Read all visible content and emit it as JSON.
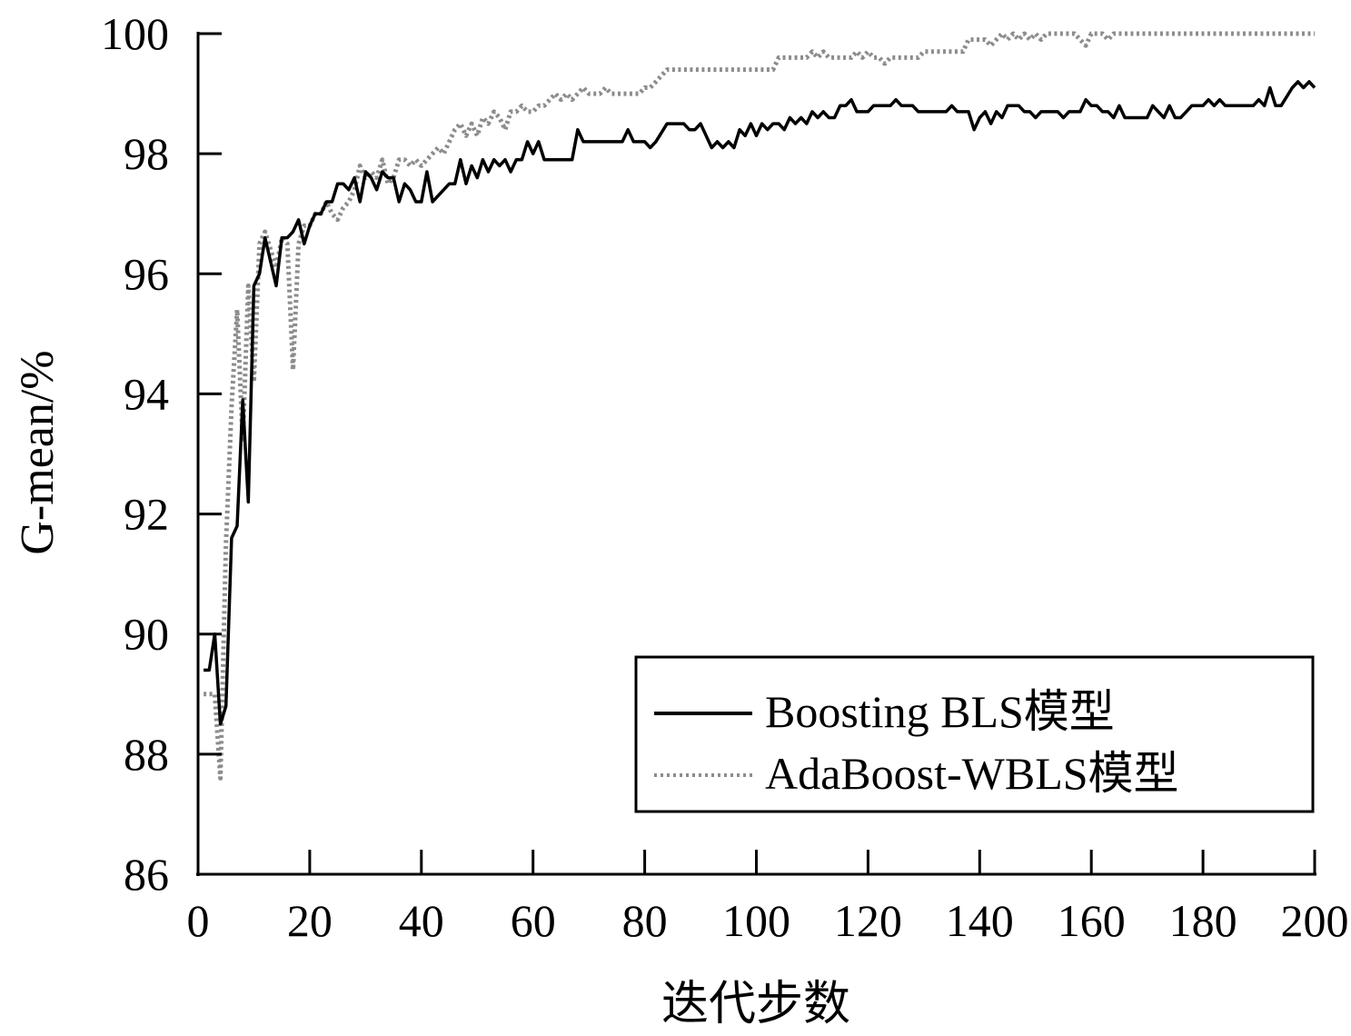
{
  "chart_data": {
    "type": "line",
    "title": "",
    "xlabel": "迭代步数",
    "ylabel": "G-mean/%",
    "xlim": [
      0,
      200
    ],
    "ylim": [
      86,
      100
    ],
    "xticks": [
      0,
      20,
      40,
      60,
      80,
      100,
      120,
      140,
      160,
      180,
      200
    ],
    "yticks": [
      86,
      88,
      90,
      92,
      94,
      96,
      98,
      100
    ],
    "grid": false,
    "legend_position": "bottom-right",
    "series": [
      {
        "name": "Boosting BLS模型",
        "color": "#000000",
        "style": "solid",
        "points": [
          [
            1,
            89.4
          ],
          [
            2,
            89.4
          ],
          [
            3,
            90.0
          ],
          [
            4,
            88.5
          ],
          [
            5,
            88.8
          ],
          [
            6,
            91.6
          ],
          [
            7,
            91.8
          ],
          [
            8,
            93.9
          ],
          [
            9,
            92.2
          ],
          [
            10,
            95.8
          ],
          [
            11,
            96.0
          ],
          [
            12,
            96.6
          ],
          [
            13,
            96.2
          ],
          [
            14,
            95.8
          ],
          [
            15,
            96.6
          ],
          [
            16,
            96.6
          ],
          [
            17,
            96.7
          ],
          [
            18,
            96.9
          ],
          [
            19,
            96.5
          ],
          [
            20,
            96.8
          ],
          [
            21,
            97.0
          ],
          [
            22,
            97.0
          ],
          [
            23,
            97.2
          ],
          [
            24,
            97.2
          ],
          [
            25,
            97.5
          ],
          [
            26,
            97.5
          ],
          [
            27,
            97.4
          ],
          [
            28,
            97.6
          ],
          [
            29,
            97.2
          ],
          [
            30,
            97.7
          ],
          [
            31,
            97.6
          ],
          [
            32,
            97.4
          ],
          [
            33,
            97.7
          ],
          [
            34,
            97.6
          ],
          [
            35,
            97.6
          ],
          [
            36,
            97.2
          ],
          [
            37,
            97.5
          ],
          [
            38,
            97.4
          ],
          [
            39,
            97.2
          ],
          [
            40,
            97.2
          ],
          [
            41,
            97.7
          ],
          [
            42,
            97.2
          ],
          [
            43,
            97.3
          ],
          [
            44,
            97.4
          ],
          [
            45,
            97.5
          ],
          [
            46,
            97.5
          ],
          [
            47,
            97.9
          ],
          [
            48,
            97.5
          ],
          [
            49,
            97.8
          ],
          [
            50,
            97.6
          ],
          [
            51,
            97.9
          ],
          [
            52,
            97.7
          ],
          [
            53,
            97.9
          ],
          [
            54,
            97.8
          ],
          [
            55,
            97.9
          ],
          [
            56,
            97.7
          ],
          [
            57,
            97.9
          ],
          [
            58,
            97.9
          ],
          [
            59,
            98.2
          ],
          [
            60,
            98.0
          ],
          [
            61,
            98.2
          ],
          [
            62,
            97.9
          ],
          [
            64,
            97.9
          ],
          [
            67,
            97.9
          ],
          [
            68,
            98.4
          ],
          [
            69,
            98.2
          ],
          [
            70,
            98.2
          ],
          [
            76,
            98.2
          ],
          [
            77,
            98.4
          ],
          [
            78,
            98.2
          ],
          [
            80,
            98.2
          ],
          [
            81,
            98.1
          ],
          [
            82,
            98.2
          ],
          [
            84,
            98.5
          ],
          [
            87,
            98.5
          ],
          [
            88,
            98.4
          ],
          [
            89,
            98.4
          ],
          [
            90,
            98.5
          ],
          [
            91,
            98.3
          ],
          [
            92,
            98.1
          ],
          [
            93,
            98.2
          ],
          [
            94,
            98.1
          ],
          [
            95,
            98.2
          ],
          [
            96,
            98.1
          ],
          [
            97,
            98.4
          ],
          [
            98,
            98.3
          ],
          [
            99,
            98.5
          ],
          [
            100,
            98.3
          ],
          [
            101,
            98.5
          ],
          [
            102,
            98.4
          ],
          [
            103,
            98.5
          ],
          [
            104,
            98.5
          ],
          [
            105,
            98.4
          ],
          [
            106,
            98.6
          ],
          [
            107,
            98.5
          ],
          [
            108,
            98.6
          ],
          [
            109,
            98.5
          ],
          [
            110,
            98.7
          ],
          [
            111,
            98.6
          ],
          [
            112,
            98.7
          ],
          [
            113,
            98.6
          ],
          [
            114,
            98.6
          ],
          [
            115,
            98.8
          ],
          [
            116,
            98.8
          ],
          [
            117,
            98.9
          ],
          [
            118,
            98.7
          ],
          [
            120,
            98.7
          ],
          [
            121,
            98.8
          ],
          [
            124,
            98.8
          ],
          [
            125,
            98.9
          ],
          [
            126,
            98.8
          ],
          [
            128,
            98.8
          ],
          [
            129,
            98.7
          ],
          [
            134,
            98.7
          ],
          [
            135,
            98.8
          ],
          [
            136,
            98.7
          ],
          [
            138,
            98.7
          ],
          [
            139,
            98.4
          ],
          [
            140,
            98.6
          ],
          [
            141,
            98.7
          ],
          [
            142,
            98.5
          ],
          [
            143,
            98.7
          ],
          [
            144,
            98.6
          ],
          [
            145,
            98.8
          ],
          [
            147,
            98.8
          ],
          [
            148,
            98.7
          ],
          [
            149,
            98.7
          ],
          [
            150,
            98.6
          ],
          [
            151,
            98.7
          ],
          [
            154,
            98.7
          ],
          [
            155,
            98.6
          ],
          [
            156,
            98.7
          ],
          [
            158,
            98.7
          ],
          [
            159,
            98.9
          ],
          [
            160,
            98.8
          ],
          [
            161,
            98.8
          ],
          [
            162,
            98.7
          ],
          [
            163,
            98.7
          ],
          [
            164,
            98.6
          ],
          [
            165,
            98.8
          ],
          [
            166,
            98.6
          ],
          [
            170,
            98.6
          ],
          [
            171,
            98.8
          ],
          [
            172,
            98.7
          ],
          [
            173,
            98.6
          ],
          [
            174,
            98.8
          ],
          [
            175,
            98.6
          ],
          [
            176,
            98.6
          ],
          [
            177,
            98.7
          ],
          [
            178,
            98.8
          ],
          [
            180,
            98.8
          ],
          [
            181,
            98.9
          ],
          [
            182,
            98.8
          ],
          [
            183,
            98.9
          ],
          [
            184,
            98.8
          ],
          [
            189,
            98.8
          ],
          [
            190,
            98.9
          ],
          [
            191,
            98.8
          ],
          [
            192,
            99.1
          ],
          [
            193,
            98.8
          ],
          [
            194,
            98.8
          ],
          [
            196,
            99.1
          ],
          [
            197,
            99.2
          ],
          [
            198,
            99.1
          ],
          [
            199,
            99.2
          ],
          [
            200,
            99.1
          ]
        ]
      },
      {
        "name": "AdaBoost-WBLS模型",
        "color": "#8c8c8c",
        "style": "dotted",
        "points": [
          [
            1,
            89.0
          ],
          [
            2,
            89.0
          ],
          [
            3,
            89.0
          ],
          [
            4,
            87.6
          ],
          [
            5,
            91.5
          ],
          [
            6,
            93.8
          ],
          [
            7,
            95.4
          ],
          [
            8,
            93.2
          ],
          [
            9,
            95.8
          ],
          [
            10,
            94.2
          ],
          [
            11,
            96.5
          ],
          [
            12,
            96.7
          ],
          [
            13,
            96.4
          ],
          [
            14,
            96.1
          ],
          [
            15,
            96.6
          ],
          [
            16,
            96.5
          ],
          [
            17,
            94.4
          ],
          [
            18,
            96.5
          ],
          [
            19,
            96.8
          ],
          [
            20,
            96.8
          ],
          [
            21,
            97.0
          ],
          [
            22,
            97.0
          ],
          [
            23,
            97.2
          ],
          [
            24,
            97.0
          ],
          [
            25,
            96.9
          ],
          [
            26,
            97.1
          ],
          [
            27,
            97.2
          ],
          [
            28,
            97.4
          ],
          [
            29,
            97.8
          ],
          [
            30,
            97.6
          ],
          [
            31,
            97.7
          ],
          [
            32,
            97.6
          ],
          [
            33,
            97.9
          ],
          [
            34,
            97.5
          ],
          [
            35,
            97.6
          ],
          [
            36,
            97.9
          ],
          [
            37,
            97.9
          ],
          [
            38,
            97.8
          ],
          [
            39,
            97.9
          ],
          [
            40,
            97.8
          ],
          [
            41,
            97.9
          ],
          [
            42,
            98.0
          ],
          [
            43,
            98.1
          ],
          [
            44,
            98.0
          ],
          [
            45,
            98.2
          ],
          [
            46,
            98.4
          ],
          [
            47,
            98.5
          ],
          [
            48,
            98.3
          ],
          [
            49,
            98.5
          ],
          [
            50,
            98.3
          ],
          [
            51,
            98.6
          ],
          [
            52,
            98.5
          ],
          [
            53,
            98.7
          ],
          [
            54,
            98.6
          ],
          [
            55,
            98.4
          ],
          [
            56,
            98.7
          ],
          [
            57,
            98.7
          ],
          [
            58,
            98.8
          ],
          [
            59,
            98.7
          ],
          [
            60,
            98.7
          ],
          [
            61,
            98.8
          ],
          [
            62,
            98.8
          ],
          [
            63,
            98.9
          ],
          [
            64,
            99.0
          ],
          [
            65,
            98.9
          ],
          [
            66,
            99.0
          ],
          [
            67,
            98.9
          ],
          [
            68,
            99.0
          ],
          [
            69,
            99.1
          ],
          [
            70,
            99.0
          ],
          [
            72,
            99.0
          ],
          [
            73,
            99.1
          ],
          [
            74,
            99.0
          ],
          [
            79,
            99.0
          ],
          [
            80,
            99.1
          ],
          [
            81,
            99.1
          ],
          [
            82,
            99.2
          ],
          [
            83,
            99.3
          ],
          [
            84,
            99.4
          ],
          [
            103,
            99.4
          ],
          [
            104,
            99.6
          ],
          [
            109,
            99.6
          ],
          [
            110,
            99.7
          ],
          [
            111,
            99.6
          ],
          [
            112,
            99.7
          ],
          [
            113,
            99.6
          ],
          [
            117,
            99.6
          ],
          [
            118,
            99.7
          ],
          [
            119,
            99.6
          ],
          [
            120,
            99.7
          ],
          [
            121,
            99.6
          ],
          [
            122,
            99.6
          ],
          [
            123,
            99.5
          ],
          [
            124,
            99.6
          ],
          [
            129,
            99.6
          ],
          [
            130,
            99.7
          ],
          [
            137,
            99.7
          ],
          [
            138,
            99.9
          ],
          [
            141,
            99.9
          ],
          [
            142,
            99.8
          ],
          [
            143,
            99.9
          ],
          [
            144,
            100.0
          ],
          [
            145,
            99.9
          ],
          [
            146,
            100.0
          ],
          [
            147,
            99.9
          ],
          [
            148,
            100.0
          ],
          [
            149,
            99.9
          ],
          [
            150,
            100.0
          ],
          [
            151,
            99.9
          ],
          [
            152,
            100.0
          ],
          [
            157,
            100.0
          ],
          [
            158,
            99.9
          ],
          [
            159,
            99.8
          ],
          [
            160,
            100.0
          ],
          [
            162,
            100.0
          ],
          [
            163,
            99.9
          ],
          [
            164,
            100.0
          ],
          [
            200,
            100.0
          ]
        ]
      }
    ]
  }
}
